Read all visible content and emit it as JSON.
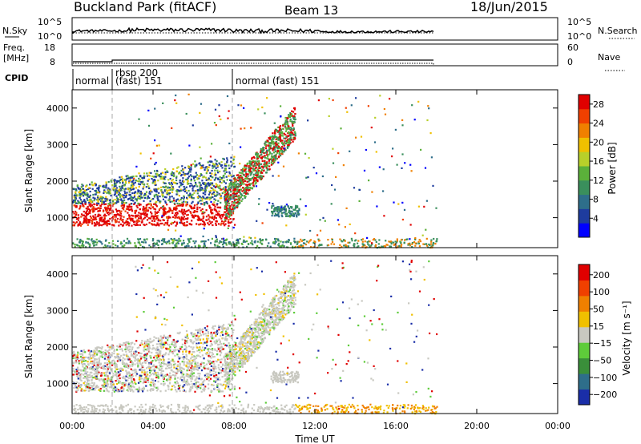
{
  "header": {
    "station": "Buckland Park (fitACF)",
    "beam": "Beam 13",
    "date": "18/Jun/2015"
  },
  "noise_panel": {
    "left_label": "N.Sky",
    "left_ticks": [
      "10^5",
      "10^0"
    ],
    "right_ticks": [
      "10^5",
      "10^0"
    ],
    "right_label": "N.Search"
  },
  "freq_panel": {
    "left_label_line1": "Freq.",
    "left_label_line2": "[MHz]",
    "left_ticks": [
      "18",
      "8"
    ],
    "right_ticks": [
      "60",
      "0"
    ],
    "right_label": "Nave"
  },
  "cpid": {
    "label": "CPID",
    "segments": [
      {
        "text": "normal",
        "start_hour": 0.0
      },
      {
        "text": "rbsp 200",
        "start_hour": 1.95
      },
      {
        "text": "(fast) 151",
        "start_hour": 1.95
      },
      {
        "text": "normal (fast) 151",
        "start_hour": 8.0
      }
    ]
  },
  "chart_data": [
    {
      "type": "heatmap",
      "title": "",
      "ylabel": "Slant Range [km]",
      "xlabel": "",
      "ylim": [
        180,
        4500
      ],
      "yticks": [
        "1000",
        "2000",
        "3000",
        "4000"
      ],
      "xlim_hours": [
        0,
        24
      ],
      "colorbar": {
        "label": "Power [dB]",
        "ticks": [
          "4",
          "8",
          "12",
          "16",
          "20",
          "24",
          "28"
        ],
        "range": [
          0,
          30
        ],
        "colors": [
          "#0000ff",
          "#1e3c9e",
          "#2e6e8a",
          "#3a8f5c",
          "#5bb03a",
          "#b8d02a",
          "#f0c000",
          "#f08000",
          "#f04000",
          "#e00000"
        ]
      }
    },
    {
      "type": "heatmap",
      "title": "",
      "ylabel": "Slant Range [km]",
      "xlabel": "Time UT",
      "ylim": [
        180,
        4500
      ],
      "yticks": [
        "1000",
        "2000",
        "3000",
        "4000"
      ],
      "xlim_hours": [
        0,
        24
      ],
      "xticks": [
        "00:00",
        "04:00",
        "08:00",
        "12:00",
        "16:00",
        "20:00",
        "00:00"
      ],
      "colorbar": {
        "label": "Velocity [m s⁻¹]",
        "ticks": [
          "200",
          "100",
          "50",
          "15",
          "−15",
          "−50",
          "−100",
          "−200"
        ],
        "range": [
          -250,
          250
        ],
        "colors": [
          "#1a2ea8",
          "#2e6e8a",
          "#3a8f3a",
          "#5ecc3a",
          "#c8c8c0",
          "#f0c000",
          "#f08000",
          "#f04000",
          "#e00000"
        ]
      }
    }
  ]
}
